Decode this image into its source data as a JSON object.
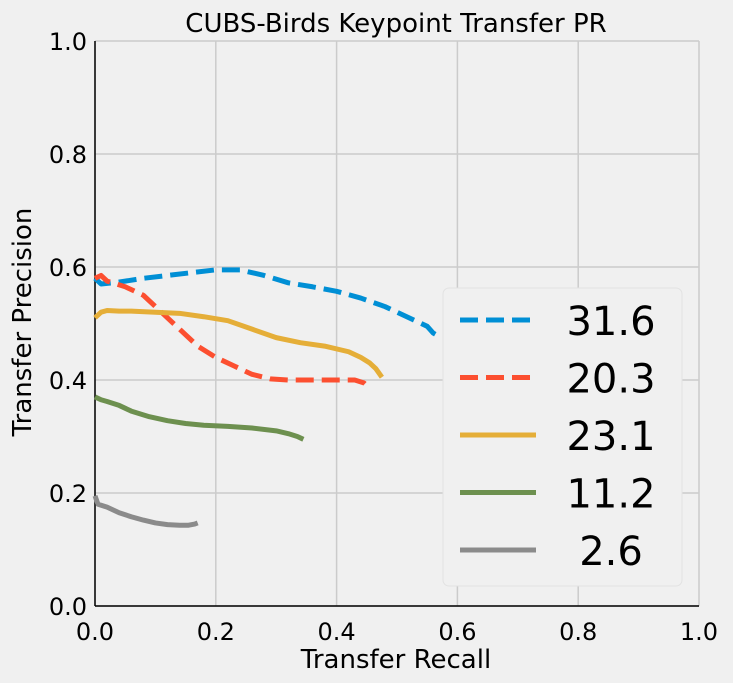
{
  "chart_data": {
    "type": "line",
    "title": "CUBS-Birds Keypoint Transfer PR",
    "xlabel": "Transfer Recall",
    "ylabel": "Transfer Precision",
    "xlim": [
      0.0,
      1.0
    ],
    "ylim": [
      0.0,
      1.0
    ],
    "x_ticks": [
      "0.0",
      "0.2",
      "0.4",
      "0.6",
      "0.8",
      "1.0"
    ],
    "y_ticks": [
      "0.0",
      "0.2",
      "0.4",
      "0.6",
      "0.8",
      "1.0"
    ],
    "grid": true,
    "legend_position": "lower-right",
    "series": [
      {
        "name": "31.6",
        "color": "#008fd5",
        "dash": true,
        "x": [
          0.0,
          0.01,
          0.03,
          0.05,
          0.08,
          0.12,
          0.16,
          0.2,
          0.24,
          0.28,
          0.32,
          0.36,
          0.4,
          0.44,
          0.48,
          0.51,
          0.53,
          0.55,
          0.56,
          0.565
        ],
        "y": [
          0.58,
          0.57,
          0.572,
          0.575,
          0.58,
          0.585,
          0.59,
          0.595,
          0.595,
          0.585,
          0.572,
          0.565,
          0.557,
          0.545,
          0.53,
          0.515,
          0.505,
          0.495,
          0.483,
          0.48
        ]
      },
      {
        "name": "20.3",
        "color": "#fc4f30",
        "dash": true,
        "x": [
          0.0,
          0.01,
          0.02,
          0.05,
          0.08,
          0.11,
          0.14,
          0.17,
          0.2,
          0.23,
          0.26,
          0.29,
          0.32,
          0.35,
          0.38,
          0.41,
          0.43,
          0.445,
          0.455
        ],
        "y": [
          0.58,
          0.585,
          0.575,
          0.565,
          0.55,
          0.52,
          0.49,
          0.46,
          0.44,
          0.425,
          0.41,
          0.402,
          0.4,
          0.4,
          0.4,
          0.4,
          0.4,
          0.395,
          0.385
        ]
      },
      {
        "name": "23.1",
        "color": "#e5ae38",
        "dash": false,
        "x": [
          0.0,
          0.01,
          0.02,
          0.04,
          0.06,
          0.1,
          0.14,
          0.18,
          0.22,
          0.26,
          0.3,
          0.34,
          0.38,
          0.42,
          0.44,
          0.455,
          0.465,
          0.475
        ],
        "y": [
          0.51,
          0.52,
          0.523,
          0.522,
          0.522,
          0.52,
          0.518,
          0.512,
          0.505,
          0.49,
          0.475,
          0.466,
          0.46,
          0.45,
          0.44,
          0.43,
          0.42,
          0.405
        ]
      },
      {
        "name": "11.2",
        "color": "#6d904f",
        "dash": false,
        "x": [
          0.0,
          0.01,
          0.02,
          0.04,
          0.06,
          0.09,
          0.12,
          0.15,
          0.18,
          0.22,
          0.26,
          0.3,
          0.32,
          0.335,
          0.345
        ],
        "y": [
          0.37,
          0.365,
          0.362,
          0.355,
          0.345,
          0.335,
          0.328,
          0.323,
          0.32,
          0.318,
          0.315,
          0.31,
          0.305,
          0.3,
          0.295
        ]
      },
      {
        "name": " 2.6",
        "color": "#8b8b8b",
        "dash": false,
        "x": [
          0.0,
          0.005,
          0.02,
          0.04,
          0.06,
          0.08,
          0.1,
          0.12,
          0.14,
          0.155,
          0.165,
          0.17
        ],
        "y": [
          0.195,
          0.18,
          0.175,
          0.165,
          0.158,
          0.152,
          0.147,
          0.144,
          0.143,
          0.143,
          0.145,
          0.147
        ]
      }
    ]
  }
}
